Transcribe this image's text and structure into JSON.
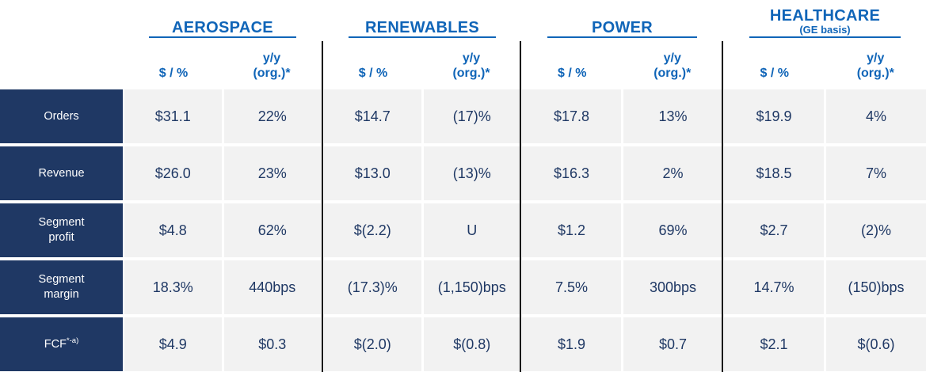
{
  "colors": {
    "header_blue": "#1065b8",
    "navy_fill": "#1f3864",
    "cell_background": "#f2f2f2",
    "divider_black": "#000000",
    "data_text": "#1f3864",
    "label_text": "#ffffff"
  },
  "table": {
    "sub_headers": {
      "value_label": "$ / %",
      "yoy_line1": "y/y",
      "yoy_line2": "(org.)*"
    },
    "row_labels": [
      {
        "key": "orders",
        "lines": [
          "Orders"
        ],
        "sup": ""
      },
      {
        "key": "revenue",
        "lines": [
          "Revenue"
        ],
        "sup": ""
      },
      {
        "key": "segment-profit",
        "lines": [
          "Segment",
          "profit"
        ],
        "sup": ""
      },
      {
        "key": "segment-margin",
        "lines": [
          "Segment",
          "margin"
        ],
        "sup": ""
      },
      {
        "key": "fcf",
        "lines": [
          "FCF"
        ],
        "sup": "*-a)"
      }
    ],
    "groups": [
      {
        "key": "aerospace",
        "title": "AEROSPACE",
        "subtitle": "",
        "rows": [
          [
            "$31.1",
            "22%"
          ],
          [
            "$26.0",
            "23%"
          ],
          [
            "$4.8",
            "62%"
          ],
          [
            "18.3%",
            "440bps"
          ],
          [
            "$4.9",
            "$0.3"
          ]
        ]
      },
      {
        "key": "renewables",
        "title": "RENEWABLES",
        "subtitle": "",
        "rows": [
          [
            "$14.7",
            "(17)%"
          ],
          [
            "$13.0",
            "(13)%"
          ],
          [
            "$(2.2)",
            "U"
          ],
          [
            "(17.3)%",
            "(1,150)bps"
          ],
          [
            "$(2.0)",
            "$(0.8)"
          ]
        ]
      },
      {
        "key": "power",
        "title": "POWER",
        "subtitle": "",
        "rows": [
          [
            "$17.8",
            "13%"
          ],
          [
            "$16.3",
            "2%"
          ],
          [
            "$1.2",
            "69%"
          ],
          [
            "7.5%",
            "300bps"
          ],
          [
            "$1.9",
            "$0.7"
          ]
        ]
      },
      {
        "key": "healthcare",
        "title": "HEALTHCARE",
        "subtitle": "(GE basis)",
        "rows": [
          [
            "$19.9",
            "4%"
          ],
          [
            "$18.5",
            "7%"
          ],
          [
            "$2.7",
            "(2)%"
          ],
          [
            "14.7%",
            "(150)bps"
          ],
          [
            "$2.1",
            "$(0.6)"
          ]
        ]
      }
    ]
  }
}
